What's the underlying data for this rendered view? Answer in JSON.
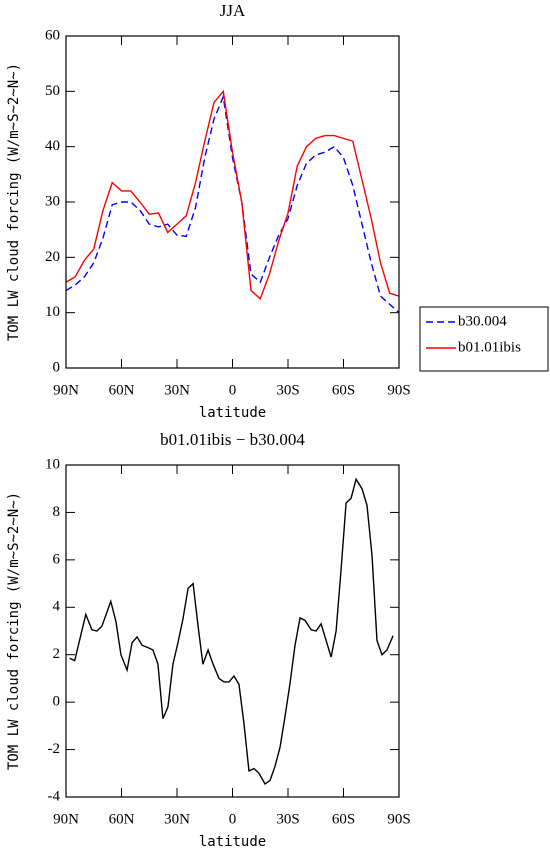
{
  "chart_data": [
    {
      "type": "line",
      "title": "JJA",
      "xlabel": "latitude",
      "ylabel": "TOM LW cloud forcing (W/m~S~2~N~)",
      "x": [
        90,
        85,
        80,
        75,
        70,
        65,
        60,
        55,
        50,
        45,
        40,
        35,
        30,
        25,
        20,
        15,
        10,
        5,
        0,
        -5,
        -10,
        -15,
        -20,
        -25,
        -30,
        -35,
        -40,
        -45,
        -50,
        -55,
        -60,
        -65,
        -70,
        -75,
        -80,
        -85,
        -90
      ],
      "xlim": [
        90,
        -90
      ],
      "xticks": [
        {
          "value": 90,
          "label": "90N"
        },
        {
          "value": 60,
          "label": "60N"
        },
        {
          "value": 30,
          "label": "30N"
        },
        0,
        {
          "value": -30,
          "label": "30S"
        },
        {
          "value": -60,
          "label": "60S"
        },
        {
          "value": -90,
          "label": "90S"
        }
      ],
      "ylim": [
        0,
        60
      ],
      "yticks": [
        0,
        10,
        20,
        30,
        40,
        50,
        60
      ],
      "legend": "right",
      "series": [
        {
          "name": "b30.004",
          "color": "#0000ff",
          "dash": true,
          "values": [
            14,
            15,
            16.5,
            19,
            23.5,
            29.5,
            30,
            30,
            28.5,
            26,
            25.5,
            26,
            24,
            23.8,
            29,
            38,
            45,
            49,
            38,
            30,
            17,
            15.5,
            20,
            24,
            27,
            33,
            37,
            38.5,
            39,
            40,
            38,
            33,
            26,
            19,
            13,
            11.5,
            10
          ]
        },
        {
          "name": "b01.01ibis",
          "color": "#ff0000",
          "dash": false,
          "values": [
            15.5,
            16.5,
            19.5,
            21.5,
            28.5,
            33.5,
            32,
            32,
            30,
            27.8,
            28,
            24.5,
            26,
            27.5,
            33.5,
            41,
            48,
            50,
            39,
            30,
            14,
            12.5,
            17,
            23,
            28,
            36.5,
            40,
            41.5,
            42,
            42,
            41.5,
            41,
            34,
            27,
            19,
            13.5,
            13
          ]
        }
      ]
    },
    {
      "type": "line",
      "title": "b01.01ibis − b30.004",
      "xlabel": "latitude",
      "ylabel": "TOM LW cloud forcing (W/m~S~2~N~)",
      "x": [
        88,
        85.3,
        79.3,
        76,
        73.3,
        70.6,
        65.8,
        63,
        60.3,
        57,
        54.3,
        51.6,
        48.9,
        45.7,
        43,
        40.3,
        37.6,
        34.9,
        32.2,
        29.5,
        26.8,
        24,
        21.3,
        18.6,
        16,
        13.2,
        10.5,
        7.3,
        4.6,
        1.9,
        -0.8,
        -3.5,
        -6.2,
        -8.9,
        -11.6,
        -14.3,
        -17.6,
        -20.3,
        -23,
        -25.7,
        -28.4,
        -31.1,
        -33.8,
        -36.5,
        -39.2,
        -42.5,
        -45.2,
        -47.9,
        -50.6,
        -53.3,
        -56,
        -58.7,
        -61.4,
        -64.1,
        -66.8,
        -70,
        -72.7,
        -75.4,
        -78.1,
        -80.8,
        -83.5,
        -86.8
      ],
      "xlim": [
        90,
        -90
      ],
      "xticks": [
        {
          "value": 90,
          "label": "90N"
        },
        {
          "value": 60,
          "label": "60N"
        },
        {
          "value": 30,
          "label": "30N"
        },
        0,
        {
          "value": -30,
          "label": "30S"
        },
        {
          "value": -60,
          "label": "60S"
        },
        {
          "value": -90,
          "label": "90S"
        }
      ],
      "ylim": [
        -4,
        10
      ],
      "yticks": [
        -4,
        -2,
        0,
        2,
        4,
        6,
        8,
        10
      ],
      "color": "#000000",
      "values": [
        1.85,
        1.75,
        3.7,
        3.05,
        3.0,
        3.2,
        4.25,
        3.4,
        2.0,
        1.35,
        2.5,
        2.75,
        2.4,
        2.3,
        2.2,
        1.6,
        -0.7,
        -0.2,
        1.6,
        2.5,
        3.5,
        4.8,
        5.0,
        3.2,
        1.6,
        2.2,
        1.6,
        1.0,
        0.85,
        0.85,
        1.1,
        0.75,
        -0.9,
        -2.9,
        -2.8,
        -3.0,
        -3.45,
        -3.3,
        -2.7,
        -1.9,
        -0.6,
        0.8,
        2.4,
        3.55,
        3.45,
        3.05,
        3.0,
        3.3,
        2.6,
        1.9,
        3.0,
        5.6,
        8.4,
        8.6,
        9.4,
        9.0,
        8.3,
        6.2,
        2.6,
        2.0,
        2.2,
        2.8
      ]
    }
  ]
}
